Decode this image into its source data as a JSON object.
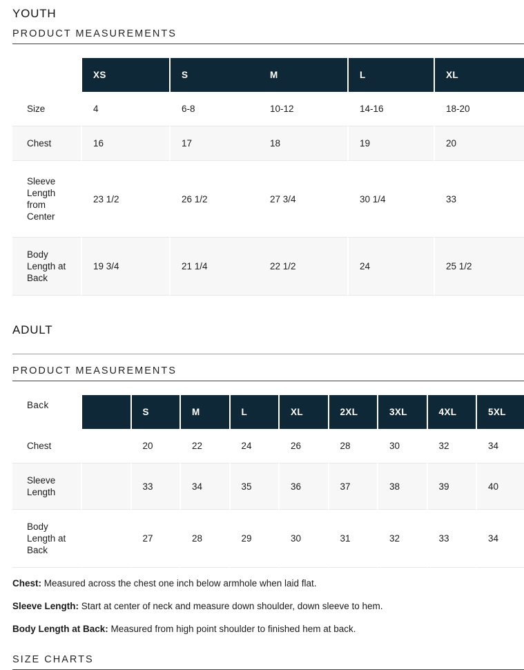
{
  "youth": {
    "title": "YOUTH",
    "section_heading": "PRODUCT MEASUREMENTS",
    "table": {
      "corner": "",
      "columns": [
        "XS",
        "S",
        "M",
        "L",
        "XL"
      ],
      "rows": [
        {
          "label": "Size",
          "values": [
            "4",
            "6-8",
            "10-12",
            "14-16",
            "18-20"
          ]
        },
        {
          "label": "Chest",
          "values": [
            "16",
            "17",
            "18",
            "19",
            "20"
          ]
        },
        {
          "label": "Sleeve Length from Center",
          "values": [
            "23 1/2",
            "26 1/2",
            "27 3/4",
            "30 1/4",
            "33"
          ]
        },
        {
          "label": "Body Length at Back",
          "values": [
            "19 3/4",
            "21 1/4",
            "22 1/2",
            "24",
            "25 1/2"
          ]
        }
      ]
    }
  },
  "adult": {
    "title": "ADULT",
    "section_heading": "PRODUCT MEASUREMENTS",
    "table": {
      "corner": "Back",
      "columns": [
        "",
        "S",
        "M",
        "L",
        "XL",
        "2XL",
        "3XL",
        "4XL",
        "5XL"
      ],
      "rows": [
        {
          "label": "Chest",
          "values": [
            "",
            "20",
            "22",
            "24",
            "26",
            "28",
            "30",
            "32",
            "34"
          ]
        },
        {
          "label": "Sleeve Length",
          "values": [
            "",
            "33",
            "34",
            "35",
            "36",
            "37",
            "38",
            "39",
            "40"
          ]
        },
        {
          "label": "Body Length at Back",
          "values": [
            "",
            "27",
            "28",
            "29",
            "30",
            "31",
            "32",
            "33",
            "34"
          ]
        }
      ]
    }
  },
  "notes": [
    {
      "term": "Chest:",
      "description": "Measured across the chest one inch below armhole when laid flat."
    },
    {
      "term": "Sleeve Length:",
      "description": "Start at center of neck and measure down shoulder, down sleeve to hem."
    },
    {
      "term": "Body Length at Back:",
      "description": "Measured from high point shoulder to finished hem at back."
    }
  ],
  "size_charts_heading": "SIZE CHARTS",
  "colors": {
    "header_bg": "#0f2837",
    "row_shade": "#f7f7f7"
  }
}
